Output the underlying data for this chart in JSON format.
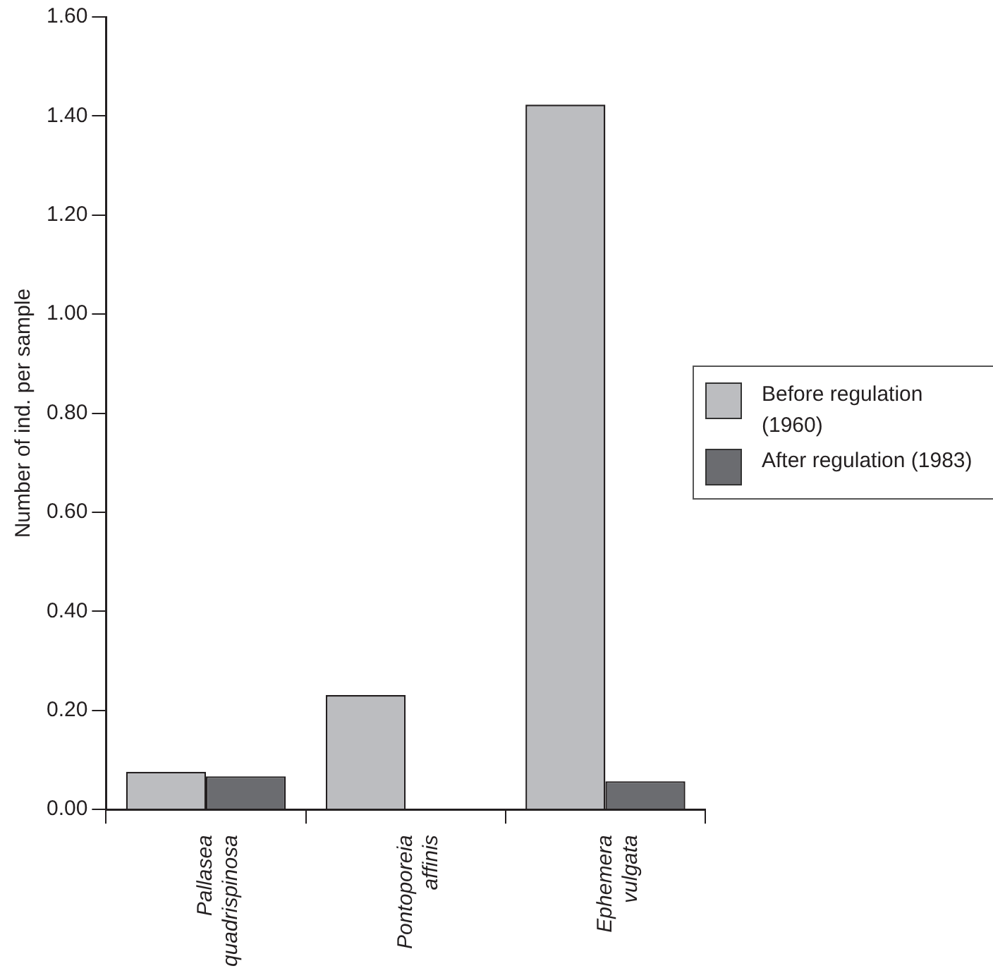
{
  "chart_data": {
    "type": "bar",
    "ylabel": "Number of ind. per sample",
    "categories": [
      "Pallasea quadrispinosa",
      "Pontoporeia affinis",
      "Ephemera vulgata"
    ],
    "series": [
      {
        "name": "Before regulation (1960)",
        "color": "#bcbdc0",
        "values": [
          0.076,
          0.231,
          1.423
        ]
      },
      {
        "name": "After regulation (1983)",
        "color": "#6b6c70",
        "values": [
          0.067,
          null,
          0.057
        ]
      }
    ],
    "ylim": [
      0,
      1.6
    ],
    "yticks": [
      {
        "value": 0,
        "label": "0.00"
      },
      {
        "value": 0.2,
        "label": "0.20"
      },
      {
        "value": 0.4,
        "label": "0.40"
      },
      {
        "value": 0.6,
        "label": "0.60"
      },
      {
        "value": 0.8,
        "label": "0.80"
      },
      {
        "value": 1,
        "label": "1.00"
      },
      {
        "value": 1.2,
        "label": "1.20"
      },
      {
        "value": 1.4,
        "label": "1.40"
      },
      {
        "value": 1.6,
        "label": "1.60"
      }
    ],
    "grid": false,
    "legend": "right"
  }
}
